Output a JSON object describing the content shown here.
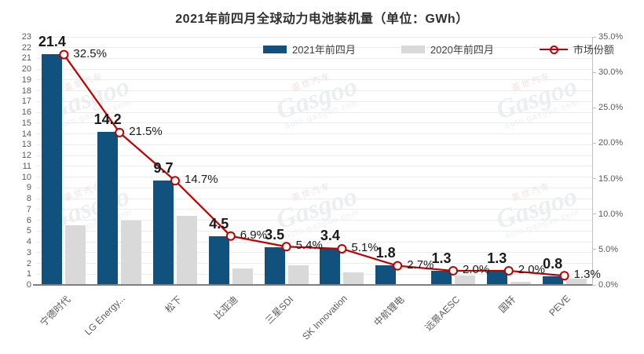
{
  "title": "2021年前四月全球动力电池装机量（单位：GWh）",
  "legend": [
    {
      "label": "2021年前四月",
      "type": "bar",
      "color": "#10517E"
    },
    {
      "label": "2020年前四月",
      "type": "bar",
      "color": "#D9D9D9"
    },
    {
      "label": "市场份额",
      "type": "line",
      "color": "#C00000"
    }
  ],
  "chart_data": {
    "type": "bar",
    "subtype": "grouped-bars-with-line",
    "title": "2021年前四月全球动力电池装机量（单位：GWh）",
    "categories": [
      "宁德时代",
      "LG Energy...",
      "松下",
      "比亚迪",
      "三星SDI",
      "SK Innovation",
      "中航锂电",
      "远景AESC",
      "国轩",
      "PEVE"
    ],
    "series": [
      {
        "name": "2021年前四月",
        "type": "bar",
        "axis": "left",
        "color": "#10517E",
        "values": [
          21.4,
          14.2,
          9.7,
          4.5,
          3.5,
          3.4,
          1.8,
          1.3,
          1.3,
          0.8
        ],
        "labels": [
          "21.4",
          "14.2",
          "9.7",
          "4.5",
          "3.5",
          "3.4",
          "1.8",
          "1.3",
          "1.3",
          "0.8"
        ]
      },
      {
        "name": "2020年前四月",
        "type": "bar",
        "axis": "left",
        "color": "#D9D9D9",
        "values": [
          5.5,
          6.0,
          6.4,
          1.5,
          1.8,
          1.2,
          0.1,
          0.9,
          0.3,
          0.6
        ],
        "labels": []
      },
      {
        "name": "市场份额",
        "type": "line",
        "axis": "right",
        "color": "#C00000",
        "marker": "open-circle",
        "values": [
          32.5,
          21.5,
          14.7,
          6.9,
          5.4,
          5.1,
          2.7,
          2.0,
          2.0,
          1.3
        ],
        "labels": [
          "32.5%",
          "21.5%",
          "14.7%",
          "6.9%",
          "5.4%",
          "5.1%",
          "2.7%",
          "2.0%",
          "2.0%",
          "1.3%"
        ]
      }
    ],
    "y_left": {
      "min": 0,
      "max": 23,
      "step": 1,
      "unit": "GWh"
    },
    "y_right": {
      "min": 0,
      "max": 35,
      "step": 5,
      "unit": "%",
      "tick_format": "one-decimal-percent"
    },
    "grid": true,
    "legend_position": "top-inside",
    "colors": {
      "grid": "#ECECEC",
      "axis_line": "#7F7F7F",
      "right_axis_line": "#BFBFBF",
      "tick_text": "#595959",
      "category_text": "#595959",
      "value_label_text": "#1a1a1a",
      "title_text": "#303030"
    }
  },
  "watermark": {
    "main": "Gasgoo",
    "sub": "auto.gasgoo.com",
    "cn": "盖世汽车"
  }
}
